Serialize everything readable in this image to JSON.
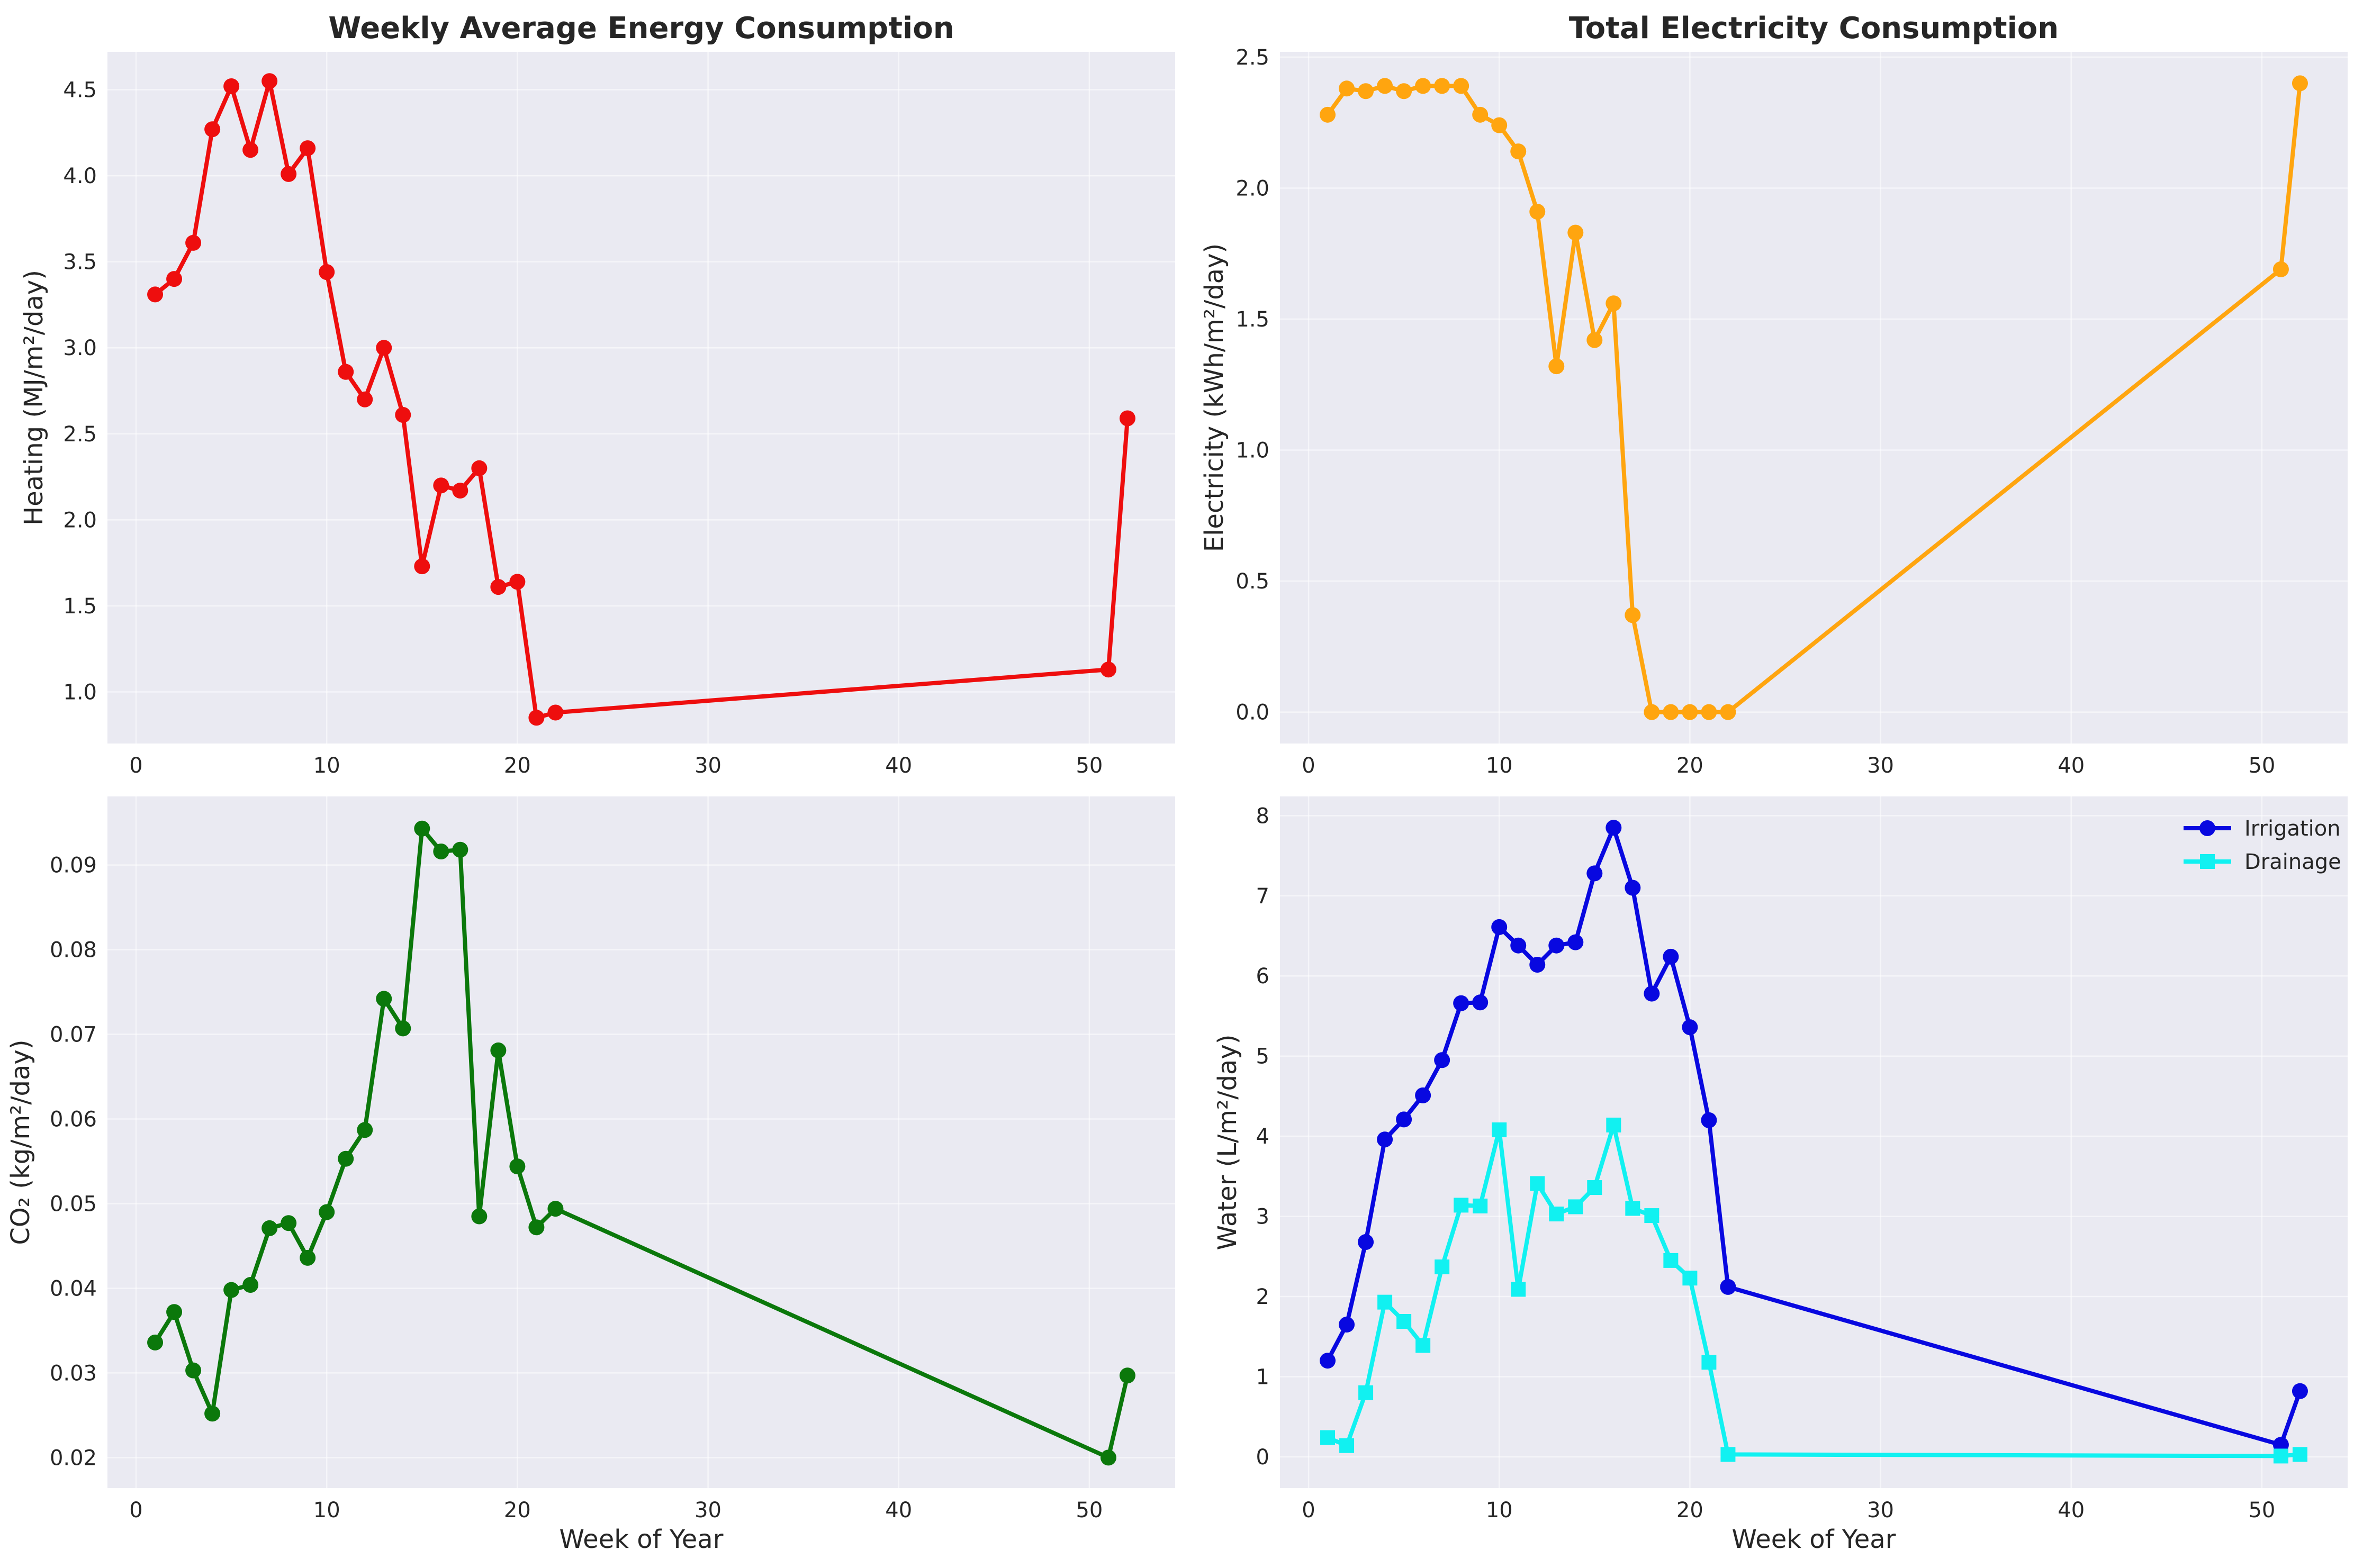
{
  "chart_data": [
    {
      "type": "line",
      "title": "Weekly Average Energy Consumption",
      "xlabel": "",
      "ylabel": "Heating (MJ/m²/day)",
      "xlim": [
        -1.5,
        54.5
      ],
      "ylim": [
        0.7,
        4.72
      ],
      "xticks": [
        "0",
        "10",
        "20",
        "30",
        "40",
        "50"
      ],
      "yticks": [
        "1.0",
        "1.5",
        "2.0",
        "2.5",
        "3.0",
        "3.5",
        "4.0",
        "4.5"
      ],
      "grid": true,
      "legend": "none",
      "series": [
        {
          "color": "#ee0e0e",
          "marker": "circle",
          "x": [
            1,
            2,
            3,
            4,
            5,
            6,
            7,
            8,
            9,
            10,
            11,
            12,
            13,
            14,
            15,
            16,
            17,
            18,
            19,
            20,
            21,
            22,
            51,
            52
          ],
          "y": [
            3.31,
            3.4,
            3.61,
            4.27,
            4.52,
            4.15,
            4.55,
            4.01,
            4.16,
            3.44,
            2.86,
            2.7,
            3.0,
            2.61,
            1.73,
            2.2,
            2.17,
            2.3,
            1.61,
            1.64,
            0.85,
            0.88,
            1.13,
            2.59
          ]
        }
      ]
    },
    {
      "type": "line",
      "title": "Total Electricity Consumption",
      "xlabel": "",
      "ylabel": "Electricity (kWh/m²/day)",
      "xlim": [
        -1.5,
        54.5
      ],
      "ylim": [
        -0.12,
        2.52
      ],
      "xticks": [
        "0",
        "10",
        "20",
        "30",
        "40",
        "50"
      ],
      "yticks": [
        "0.0",
        "0.5",
        "1.0",
        "1.5",
        "2.0",
        "2.5"
      ],
      "grid": true,
      "legend": "none",
      "series": [
        {
          "color": "#ffa50f",
          "marker": "circle",
          "x": [
            1,
            2,
            3,
            4,
            5,
            6,
            7,
            8,
            9,
            10,
            11,
            12,
            13,
            14,
            15,
            16,
            17,
            18,
            19,
            20,
            21,
            22,
            51,
            52
          ],
          "y": [
            2.28,
            2.38,
            2.37,
            2.39,
            2.37,
            2.39,
            2.39,
            2.39,
            2.28,
            2.24,
            2.14,
            1.91,
            1.32,
            1.83,
            1.42,
            1.56,
            0.37,
            0,
            0,
            0,
            0,
            0,
            1.69,
            2.4
          ]
        }
      ]
    },
    {
      "type": "line",
      "title": "",
      "xlabel": "Week of Year",
      "ylabel": "CO₂ (kg/m²/day)",
      "xlim": [
        -1.5,
        54.5
      ],
      "ylim": [
        0.0164,
        0.0981
      ],
      "xticks": [
        "0",
        "10",
        "20",
        "30",
        "40",
        "50"
      ],
      "yticks": [
        "0.02",
        "0.03",
        "0.04",
        "0.05",
        "0.06",
        "0.07",
        "0.08",
        "0.09"
      ],
      "grid": true,
      "legend": "none",
      "series": [
        {
          "color": "#0b780b",
          "marker": "circle",
          "x": [
            1,
            2,
            3,
            4,
            5,
            6,
            7,
            8,
            9,
            10,
            11,
            12,
            13,
            14,
            15,
            16,
            17,
            18,
            19,
            20,
            21,
            22,
            51,
            52
          ],
          "y": [
            0.0336,
            0.0372,
            0.0303,
            0.0252,
            0.0398,
            0.0404,
            0.0471,
            0.0477,
            0.0436,
            0.049,
            0.0553,
            0.0587,
            0.0742,
            0.0707,
            0.0943,
            0.0916,
            0.0918,
            0.0485,
            0.0681,
            0.0544,
            0.0472,
            0.0494,
            0.02,
            0.0297
          ]
        }
      ]
    },
    {
      "type": "line",
      "title": "",
      "xlabel": "Week of Year",
      "ylabel": "Water (L/m²/day)",
      "xlim": [
        -1.5,
        54.5
      ],
      "ylim": [
        -0.39,
        8.24
      ],
      "xticks": [
        "0",
        "10",
        "20",
        "30",
        "40",
        "50"
      ],
      "yticks": [
        "0",
        "1",
        "2",
        "3",
        "4",
        "5",
        "6",
        "7",
        "8"
      ],
      "grid": true,
      "legend": "top-right",
      "series": [
        {
          "name": "Irrigation",
          "color": "#0808e0",
          "marker": "circle",
          "x": [
            1,
            2,
            3,
            4,
            5,
            6,
            7,
            8,
            9,
            10,
            11,
            12,
            13,
            14,
            15,
            16,
            17,
            18,
            19,
            20,
            21,
            22,
            51,
            52
          ],
          "y": [
            1.2,
            1.65,
            2.68,
            3.96,
            4.21,
            4.51,
            4.95,
            5.66,
            5.67,
            6.61,
            6.38,
            6.14,
            6.38,
            6.42,
            7.28,
            7.85,
            7.1,
            5.78,
            6.24,
            5.36,
            4.2,
            2.12,
            0.15,
            0.82
          ]
        },
        {
          "name": "Drainage",
          "color": "#11f1f1",
          "marker": "square",
          "x": [
            1,
            2,
            3,
            4,
            5,
            6,
            7,
            8,
            9,
            10,
            11,
            12,
            13,
            14,
            15,
            16,
            17,
            18,
            19,
            20,
            21,
            22,
            51,
            52
          ],
          "y": [
            0.24,
            0.14,
            0.8,
            1.93,
            1.69,
            1.39,
            2.37,
            3.14,
            3.13,
            4.08,
            2.09,
            3.41,
            3.03,
            3.12,
            3.36,
            4.14,
            3.1,
            3.01,
            2.45,
            2.23,
            1.18,
            0.03,
            0.01,
            0.03
          ]
        }
      ]
    }
  ]
}
